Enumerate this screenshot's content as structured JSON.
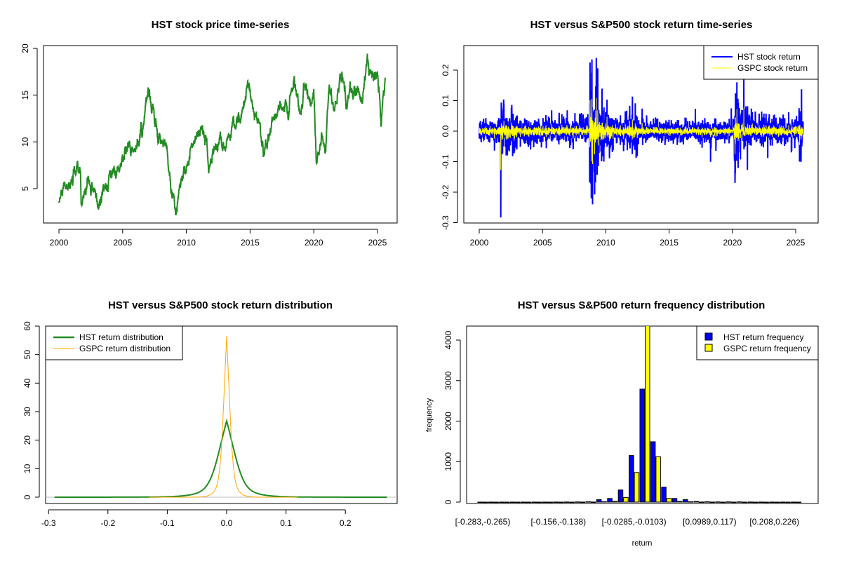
{
  "chart_data": [
    {
      "type": "line",
      "title": "HST stock price time-series",
      "xlabel": "",
      "ylabel": "",
      "xlim": [
        1999.1,
        2026.2
      ],
      "ylim": [
        1.5,
        20.3
      ],
      "x_ticks": [
        "2000",
        "2005",
        "2010",
        "2015",
        "2020",
        "2025"
      ],
      "y_ticks": [
        "5",
        "10",
        "15",
        "20"
      ],
      "color": "#228B22",
      "series": [
        {
          "name": "HST price",
          "points": [
            [
              2000,
              3.5
            ],
            [
              2000.5,
              4.6
            ],
            [
              2001.3,
              6.3
            ],
            [
              2001.7,
              6.2
            ],
            [
              2001.75,
              3.2
            ],
            [
              2002.3,
              6.0
            ],
            [
              2002.7,
              5.0
            ],
            [
              2003.2,
              3.3
            ],
            [
              2004.0,
              6.3
            ],
            [
              2004.5,
              6.3
            ],
            [
              2005.0,
              8.5
            ],
            [
              2006.0,
              9.5
            ],
            [
              2006.5,
              11.0
            ],
            [
              2007.1,
              15.3
            ],
            [
              2007.6,
              12.5
            ],
            [
              2008.0,
              9.5
            ],
            [
              2008.3,
              10.5
            ],
            [
              2008.6,
              6.8
            ],
            [
              2009.15,
              2.1
            ],
            [
              2009.5,
              5.5
            ],
            [
              2010.0,
              7.0
            ],
            [
              2010.4,
              9.5
            ],
            [
              2011.2,
              11.8
            ],
            [
              2011.6,
              9.5
            ],
            [
              2011.75,
              6.3
            ],
            [
              2012.2,
              10.0
            ],
            [
              2013.0,
              9.2
            ],
            [
              2013.5,
              11.0
            ],
            [
              2014.3,
              12.5
            ],
            [
              2014.9,
              16.0
            ],
            [
              2015.3,
              13.5
            ],
            [
              2015.8,
              12.0
            ],
            [
              2016.1,
              9.0
            ],
            [
              2016.8,
              12.5
            ],
            [
              2017.2,
              13.5
            ],
            [
              2018.0,
              13.8
            ],
            [
              2018.5,
              17.0
            ],
            [
              2018.9,
              13.0
            ],
            [
              2019.3,
              15.5
            ],
            [
              2019.8,
              14.0
            ],
            [
              2020.0,
              15.5
            ],
            [
              2020.2,
              7.8
            ],
            [
              2020.6,
              10.0
            ],
            [
              2020.9,
              9.0
            ],
            [
              2021.2,
              15.0
            ],
            [
              2021.6,
              13.0
            ],
            [
              2022.2,
              17.5
            ],
            [
              2022.6,
              14.0
            ],
            [
              2023.0,
              15.5
            ],
            [
              2023.8,
              14.5
            ],
            [
              2024.2,
              19.5
            ],
            [
              2024.5,
              17.0
            ],
            [
              2025.0,
              17.5
            ],
            [
              2025.3,
              12.5
            ],
            [
              2025.6,
              17.0
            ]
          ]
        }
      ]
    },
    {
      "type": "line",
      "title": "HST versus S&P500 stock return time-series",
      "xlabel": "",
      "ylabel": "",
      "xlim": [
        1999.1,
        2026.2
      ],
      "ylim": [
        -0.3,
        0.28
      ],
      "x_ticks": [
        "2000",
        "2005",
        "2010",
        "2015",
        "2020",
        "2025"
      ],
      "y_ticks": [
        "-0.3",
        "-0.2",
        "-0.1",
        "0.0",
        "0.1",
        "0.2"
      ],
      "legend": {
        "placement": "top-right",
        "entries": [
          "HST stock return",
          "GSPC stock return"
        ]
      },
      "series": [
        {
          "name": "HST stock return",
          "color": "#0000FF",
          "volatility": [
            [
              2000,
              0.022
            ],
            [
              2001.7,
              0.04
            ],
            [
              2003,
              0.022
            ],
            [
              2007,
              0.02
            ],
            [
              2008.7,
              0.075
            ],
            [
              2009.5,
              0.04
            ],
            [
              2010.5,
              0.022
            ],
            [
              2011.6,
              0.035
            ],
            [
              2012.5,
              0.018
            ],
            [
              2020.15,
              0.065
            ],
            [
              2020.6,
              0.032
            ],
            [
              2021.5,
              0.022
            ],
            [
              2025.25,
              0.04
            ],
            [
              2025.5,
              0.022
            ]
          ],
          "extremes": [
            [
              2001.7,
              -0.283
            ],
            [
              2008.75,
              0.225
            ],
            [
              2008.85,
              -0.22
            ],
            [
              2008.9,
              0.235
            ],
            [
              2008.95,
              -0.24
            ],
            [
              2009.25,
              0.24
            ],
            [
              2020.2,
              -0.17
            ],
            [
              2020.35,
              0.16
            ],
            [
              2020.9,
              0.17
            ],
            [
              2025.3,
              0.112
            ],
            [
              2025.3,
              -0.1
            ]
          ]
        },
        {
          "name": "GSPC stock return",
          "color": "#FFFF00",
          "volatility_ratio": 0.45
        }
      ]
    },
    {
      "type": "line",
      "title": "HST versus S&P500 stock return distribution",
      "xlabel": "",
      "ylabel": "",
      "xlim": [
        -0.305,
        0.29
      ],
      "ylim": [
        -2.3,
        60
      ],
      "x_ticks": [
        "-0.3",
        "-0.2",
        "-0.1",
        "0.0",
        "0.1",
        "0.2"
      ],
      "y_ticks": [
        "0",
        "10",
        "20",
        "30",
        "40",
        "50",
        "60"
      ],
      "legend": {
        "placement": "top-left",
        "entries": [
          "HST return distribution",
          "GSPC return distribution"
        ]
      },
      "series": [
        {
          "name": "HST return distribution",
          "color": "#228B22",
          "peak": 26.5,
          "range": [
            -0.29,
            0.27
          ]
        },
        {
          "name": "GSPC return distribution",
          "color": "#FFA500",
          "peak": 56.5,
          "range": [
            -0.13,
            0.12
          ]
        }
      ]
    },
    {
      "type": "bar",
      "title": "HST versus S&P500 return frequency distribution",
      "xlabel": "return",
      "ylabel": "frequency",
      "ylim": [
        0,
        4350
      ],
      "y_ticks": [
        "0",
        "1000",
        "2000",
        "3000",
        "4000"
      ],
      "category_labels": [
        [
          0,
          "[-0.283,-0.265)"
        ],
        [
          7,
          "[-0.156,-0.138)"
        ],
        [
          14,
          "[-0.0285,-0.0103)"
        ],
        [
          21,
          "[0.0989,0.117)"
        ],
        [
          27,
          "[0.208,0.226)"
        ]
      ],
      "legend": {
        "placement": "top-right",
        "entries": [
          "HST return frequency",
          "GSPC return frequency"
        ]
      },
      "series": [
        {
          "name": "HST return frequency",
          "color": "#0000FF",
          "values": [
            1,
            1,
            1,
            1,
            1,
            1,
            1,
            2,
            3,
            5,
            8,
            60,
            90,
            300,
            1150,
            2790,
            1490,
            370,
            90,
            60,
            15,
            8,
            5,
            6,
            6,
            3,
            2,
            1,
            1,
            1
          ]
        },
        {
          "name": "GSPC return frequency",
          "color": "#FFFF00",
          "values": [
            0,
            0,
            0,
            0,
            0,
            0,
            0,
            0,
            0,
            1,
            2,
            10,
            20,
            115,
            730,
            4700,
            1120,
            90,
            20,
            8,
            2,
            1,
            0,
            0,
            0,
            0,
            0,
            0,
            0,
            0
          ]
        }
      ]
    }
  ]
}
